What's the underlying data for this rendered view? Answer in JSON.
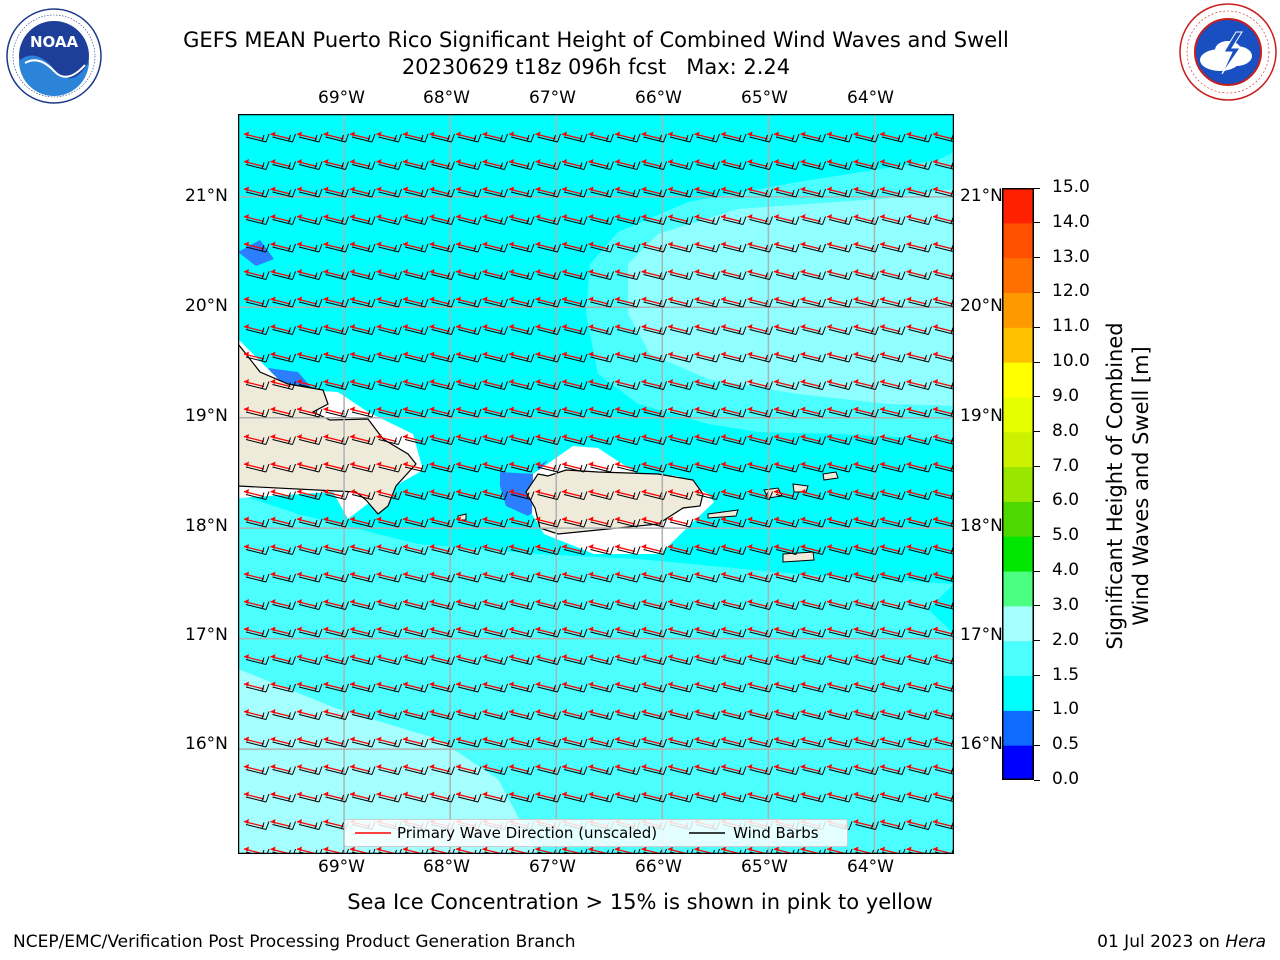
{
  "header": {
    "title_line1": "GEFS MEAN Puerto Rico Significant Height of Combined Wind Waves and Swell",
    "title_line2": "20230629 t18z 096h fcst   Max: 2.24"
  },
  "logos": {
    "left": {
      "name": "noaa-logo",
      "text": "NOAA",
      "ring_text": "NATIONAL OCEANIC AND ATMOSPHERIC ADMINISTRATION · U.S. DEPARTMENT OF COMMERCE"
    },
    "right": {
      "name": "nws-logo",
      "ring_text": "NATIONAL WEATHER SERVICE"
    }
  },
  "map": {
    "lon_labels": [
      "69°W",
      "68°W",
      "67°W",
      "66°W",
      "65°W",
      "64°W"
    ],
    "lat_labels": [
      "21°N",
      "20°N",
      "19°N",
      "18°N",
      "17°N",
      "16°N"
    ],
    "lon_range": [
      -70.0,
      -63.25
    ],
    "lat_range": [
      15.05,
      21.75
    ],
    "colors": {
      "ocean_main": "#00ffff",
      "ocean_mid": "#4cffff",
      "ocean_light": "#a6ffff",
      "ocean_blue": "#2b7fff",
      "land": "#efebdb",
      "wave_arrow": "#ff0000",
      "wind_barb": "#000000",
      "grid": "#b0b0b0"
    },
    "caption": "Sea Ice Concentration > 15% is shown in pink to yellow"
  },
  "legend": {
    "items": [
      {
        "label": "Primary Wave Direction (unscaled)",
        "color": "#ff0000"
      },
      {
        "label": "Wind Barbs",
        "color": "#000000"
      }
    ]
  },
  "colorbar": {
    "title_line1": "Significant Height of Combined",
    "title_line2": "Wind Waves and Swell [m]",
    "ticks": [
      "0.0",
      "0.5",
      "1.0",
      "1.5",
      "2.0",
      "3.0",
      "4.0",
      "5.0",
      "6.0",
      "7.0",
      "8.0",
      "9.0",
      "10.0",
      "11.0",
      "12.0",
      "13.0",
      "14.0",
      "15.0"
    ],
    "colors": [
      "#0000ff",
      "#0f6bff",
      "#00ffff",
      "#4cffff",
      "#a6ffff",
      "#4dff80",
      "#00e600",
      "#4dd900",
      "#99e600",
      "#ccf200",
      "#e6ff00",
      "#ffff00",
      "#ffc000",
      "#ff9900",
      "#ff7000",
      "#ff5000",
      "#ff2000"
    ]
  },
  "footer": {
    "left": "NCEP/EMC/Verification Post Processing Product Generation Branch",
    "date": "01 Jul 2023 on",
    "host": "Hera"
  }
}
